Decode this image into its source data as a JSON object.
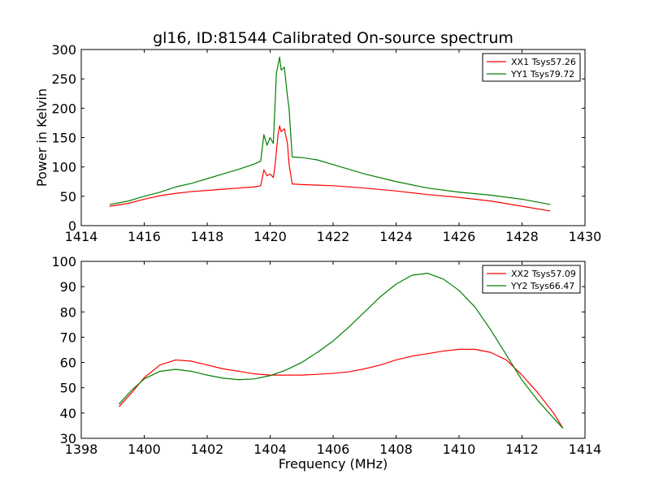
{
  "chart_data": [
    {
      "type": "line",
      "title": "gl16, ID:81544 Calibrated On-source spectrum",
      "xlabel": "",
      "ylabel": "Power in Kelvin",
      "xlim": [
        1414,
        1430
      ],
      "ylim": [
        0,
        300
      ],
      "xticks": [
        1414,
        1416,
        1418,
        1420,
        1422,
        1424,
        1426,
        1428,
        1430
      ],
      "yticks": [
        0,
        50,
        100,
        150,
        200,
        250,
        300
      ],
      "grid": false,
      "legend_position": "top-right",
      "series": [
        {
          "name": "XX1 Tsys57.26",
          "color": "#ff0000",
          "points": [
            [
              1414.9,
              33
            ],
            [
              1415.5,
              38
            ],
            [
              1416.0,
              45
            ],
            [
              1416.5,
              51
            ],
            [
              1417.0,
              55
            ],
            [
              1417.5,
              58
            ],
            [
              1418.0,
              60
            ],
            [
              1418.5,
              62
            ],
            [
              1419.0,
              64
            ],
            [
              1419.5,
              66
            ],
            [
              1419.7,
              68
            ],
            [
              1419.8,
              95
            ],
            [
              1419.9,
              85
            ],
            [
              1420.0,
              88
            ],
            [
              1420.1,
              82
            ],
            [
              1420.15,
              100
            ],
            [
              1420.25,
              155
            ],
            [
              1420.3,
              170
            ],
            [
              1420.35,
              160
            ],
            [
              1420.45,
              165
            ],
            [
              1420.55,
              140
            ],
            [
              1420.6,
              105
            ],
            [
              1420.7,
              71
            ],
            [
              1421.0,
              70
            ],
            [
              1421.5,
              69
            ],
            [
              1422.0,
              68
            ],
            [
              1423.0,
              64
            ],
            [
              1424.0,
              59
            ],
            [
              1425.0,
              53
            ],
            [
              1426.0,
              48
            ],
            [
              1427.0,
              42
            ],
            [
              1428.0,
              33
            ],
            [
              1428.9,
              25
            ]
          ]
        },
        {
          "name": "YY1 Tsys79.72",
          "color": "#008000",
          "points": [
            [
              1414.9,
              36
            ],
            [
              1415.5,
              42
            ],
            [
              1416.0,
              50
            ],
            [
              1416.5,
              57
            ],
            [
              1417.0,
              66
            ],
            [
              1417.5,
              72
            ],
            [
              1418.0,
              80
            ],
            [
              1418.5,
              88
            ],
            [
              1419.0,
              96
            ],
            [
              1419.5,
              105
            ],
            [
              1419.7,
              110
            ],
            [
              1419.8,
              155
            ],
            [
              1419.9,
              137
            ],
            [
              1420.0,
              150
            ],
            [
              1420.1,
              140
            ],
            [
              1420.15,
              200
            ],
            [
              1420.2,
              260
            ],
            [
              1420.3,
              287
            ],
            [
              1420.35,
              265
            ],
            [
              1420.45,
              270
            ],
            [
              1420.55,
              220
            ],
            [
              1420.6,
              200
            ],
            [
              1420.7,
              117
            ],
            [
              1421.0,
              116
            ],
            [
              1421.5,
              112
            ],
            [
              1422.0,
              104
            ],
            [
              1423.0,
              88
            ],
            [
              1424.0,
              75
            ],
            [
              1425.0,
              64
            ],
            [
              1426.0,
              57
            ],
            [
              1427.0,
              52
            ],
            [
              1428.0,
              45
            ],
            [
              1428.9,
              36
            ]
          ]
        }
      ]
    },
    {
      "type": "line",
      "title": "",
      "xlabel": "Frequency (MHz)",
      "ylabel": "",
      "xlim": [
        1398,
        1414
      ],
      "ylim": [
        30,
        100
      ],
      "xticks": [
        1398,
        1400,
        1402,
        1404,
        1406,
        1408,
        1410,
        1412,
        1414
      ],
      "yticks": [
        30,
        40,
        50,
        60,
        70,
        80,
        90,
        100
      ],
      "grid": false,
      "legend_position": "top-right",
      "series": [
        {
          "name": "XX2 Tsys57.09",
          "color": "#ff0000",
          "points": [
            [
              1399.2,
              42.5
            ],
            [
              1399.6,
              48
            ],
            [
              1400.0,
              54
            ],
            [
              1400.5,
              59
            ],
            [
              1401.0,
              61
            ],
            [
              1401.5,
              60.5
            ],
            [
              1402.0,
              59
            ],
            [
              1402.5,
              57.5
            ],
            [
              1403.0,
              56.5
            ],
            [
              1403.5,
              55.5
            ],
            [
              1404.0,
              55
            ],
            [
              1404.5,
              55
            ],
            [
              1405.0,
              55
            ],
            [
              1405.5,
              55.3
            ],
            [
              1406.0,
              55.7
            ],
            [
              1406.5,
              56.3
            ],
            [
              1407.0,
              57.5
            ],
            [
              1407.5,
              59
            ],
            [
              1408.0,
              61
            ],
            [
              1408.5,
              62.5
            ],
            [
              1409.0,
              63.5
            ],
            [
              1409.5,
              64.5
            ],
            [
              1410.0,
              65.2
            ],
            [
              1410.5,
              65.2
            ],
            [
              1411.0,
              64
            ],
            [
              1411.5,
              61
            ],
            [
              1412.0,
              55
            ],
            [
              1412.5,
              48
            ],
            [
              1413.0,
              40
            ],
            [
              1413.3,
              34
            ]
          ]
        },
        {
          "name": "YY2 Tsys66.47",
          "color": "#008000",
          "points": [
            [
              1399.2,
              43.5
            ],
            [
              1399.6,
              49
            ],
            [
              1400.0,
              53.5
            ],
            [
              1400.5,
              56.5
            ],
            [
              1401.0,
              57.3
            ],
            [
              1401.5,
              56.5
            ],
            [
              1402.0,
              55
            ],
            [
              1402.5,
              53.8
            ],
            [
              1403.0,
              53.2
            ],
            [
              1403.5,
              53.5
            ],
            [
              1404.0,
              54.8
            ],
            [
              1404.5,
              57
            ],
            [
              1405.0,
              60
            ],
            [
              1405.5,
              64
            ],
            [
              1406.0,
              68.5
            ],
            [
              1406.5,
              74
            ],
            [
              1407.0,
              80
            ],
            [
              1407.5,
              86
            ],
            [
              1408.0,
              91
            ],
            [
              1408.5,
              94.5
            ],
            [
              1409.0,
              95.3
            ],
            [
              1409.5,
              93
            ],
            [
              1410.0,
              88.5
            ],
            [
              1410.5,
              82
            ],
            [
              1411.0,
              73
            ],
            [
              1411.5,
              63
            ],
            [
              1412.0,
              53
            ],
            [
              1412.5,
              45
            ],
            [
              1413.0,
              38
            ],
            [
              1413.3,
              34
            ]
          ]
        }
      ]
    }
  ]
}
